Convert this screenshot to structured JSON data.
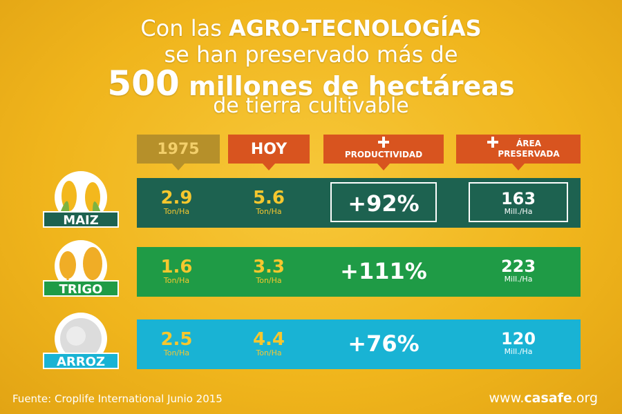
{
  "header": {
    "line1": {
      "normal": "Con las",
      "bold": "AGRO-TECNOLOGÍAS"
    },
    "line2": "se han preservado más de",
    "line3": {
      "number": "500",
      "text": "millones de hectáreas"
    },
    "line4": "de tierra cultivable"
  },
  "table": {
    "columns": [
      "1975",
      "HOY",
      "PRODUCTIVIDAD",
      "ÁREA PRESERVADA"
    ],
    "rows": [
      {
        "crop": "MAIZ",
        "v1975": "2.9",
        "u1975": "Ton/Ha",
        "vhoy": "5.6",
        "uhoy": "Ton/Ha",
        "productividad": "+92%",
        "area": "163",
        "area_unit": "Mill./Ha"
      },
      {
        "crop": "TRIGO",
        "v1975": "1.6",
        "u1975": "Ton/Ha",
        "vhoy": "3.3",
        "uhoy": "Ton/Ha",
        "productividad": "+111%",
        "area": "223",
        "area_unit": "Mill./Ha"
      },
      {
        "crop": "ARROZ",
        "v1975": "2.5",
        "u1975": "Ton/Ha",
        "vhoy": "4.4",
        "uhoy": "Ton/Ha",
        "productividad": "+76%",
        "area": "120",
        "area_unit": "Mill./Ha"
      }
    ]
  },
  "footer": {
    "source": "Fuente: Croplife International Junio 2015",
    "website": {
      "prefix": "www.",
      "brand": "casafe",
      "suffix": ".org"
    }
  }
}
